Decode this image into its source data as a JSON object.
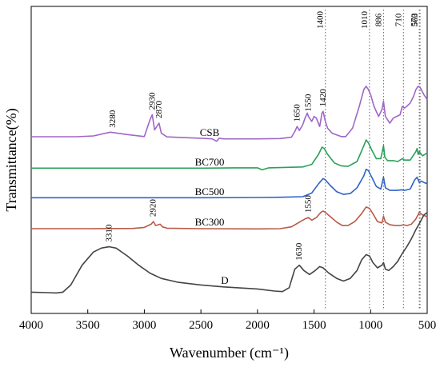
{
  "chart_data": {
    "type": "line",
    "xlabel": "Wavenumber (cm⁻¹)",
    "ylabel": "Transmittance(%)",
    "xlim": [
      4000,
      500
    ],
    "x_reversed": true,
    "x_ticks": [
      4000,
      3500,
      3000,
      2500,
      2000,
      1500,
      1000,
      500
    ],
    "y_ticks": "none",
    "grid": false,
    "legend": "none",
    "reference_lines": [
      1400,
      1010,
      886,
      710,
      570,
      563
    ],
    "reference_line_labels": [
      "1400",
      "1010",
      "886",
      "710",
      "570",
      "563"
    ],
    "series": [
      {
        "name": "CSB",
        "color": "#a066c8",
        "points": [
          [
            4000,
            0.95
          ],
          [
            3800,
            0.95
          ],
          [
            3600,
            0.95
          ],
          [
            3450,
            1.2
          ],
          [
            3300,
            2.3
          ],
          [
            3150,
            1.6
          ],
          [
            3000,
            1.0
          ],
          [
            2950,
            6.0
          ],
          [
            2930,
            7.5
          ],
          [
            2910,
            3.0
          ],
          [
            2880,
            4.5
          ],
          [
            2870,
            5.0
          ],
          [
            2850,
            2.0
          ],
          [
            2800,
            0.9
          ],
          [
            2500,
            0.5
          ],
          [
            2400,
            0.3
          ],
          [
            2360,
            -0.4
          ],
          [
            2340,
            0.5
          ],
          [
            2300,
            0.3
          ],
          [
            2000,
            0.3
          ],
          [
            1800,
            0.4
          ],
          [
            1700,
            0.8
          ],
          [
            1670,
            2.5
          ],
          [
            1650,
            4.0
          ],
          [
            1630,
            2.8
          ],
          [
            1600,
            4.5
          ],
          [
            1580,
            6.5
          ],
          [
            1560,
            8.0
          ],
          [
            1550,
            7.0
          ],
          [
            1520,
            5.5
          ],
          [
            1500,
            7.0
          ],
          [
            1480,
            6.5
          ],
          [
            1450,
            4.0
          ],
          [
            1430,
            8.0
          ],
          [
            1420,
            8.5
          ],
          [
            1400,
            5.5
          ],
          [
            1380,
            3.5
          ],
          [
            1340,
            2.0
          ],
          [
            1300,
            1.5
          ],
          [
            1260,
            1.0
          ],
          [
            1220,
            1.0
          ],
          [
            1160,
            3.5
          ],
          [
            1100,
            10.0
          ],
          [
            1060,
            15.0
          ],
          [
            1040,
            16.0
          ],
          [
            1020,
            15.0
          ],
          [
            1000,
            13.5
          ],
          [
            970,
            10.0
          ],
          [
            930,
            7.0
          ],
          [
            900,
            9.0
          ],
          [
            886,
            11.5
          ],
          [
            870,
            7.0
          ],
          [
            830,
            5.0
          ],
          [
            800,
            6.5
          ],
          [
            770,
            7.0
          ],
          [
            740,
            7.5
          ],
          [
            720,
            10.0
          ],
          [
            700,
            9.5
          ],
          [
            680,
            10.0
          ],
          [
            650,
            11.0
          ],
          [
            620,
            13.0
          ],
          [
            600,
            15.0
          ],
          [
            580,
            16.0
          ],
          [
            560,
            15.5
          ],
          [
            530,
            13.5
          ],
          [
            500,
            12.0
          ]
        ]
      },
      {
        "name": "BC700",
        "color": "#2aa05a",
        "points": [
          [
            4000,
            0.2
          ],
          [
            3500,
            0.2
          ],
          [
            3000,
            0.2
          ],
          [
            2500,
            0.2
          ],
          [
            2200,
            0.3
          ],
          [
            2000,
            0.3
          ],
          [
            1960,
            -0.4
          ],
          [
            1900,
            0.3
          ],
          [
            1800,
            0.4
          ],
          [
            1600,
            0.6
          ],
          [
            1520,
            1.5
          ],
          [
            1460,
            5.0
          ],
          [
            1430,
            7.5
          ],
          [
            1410,
            7.0
          ],
          [
            1380,
            5.0
          ],
          [
            1320,
            2.0
          ],
          [
            1260,
            1.0
          ],
          [
            1200,
            0.8
          ],
          [
            1120,
            2.5
          ],
          [
            1060,
            8.0
          ],
          [
            1040,
            10.0
          ],
          [
            1020,
            9.0
          ],
          [
            990,
            6.5
          ],
          [
            950,
            3.5
          ],
          [
            910,
            3.5
          ],
          [
            886,
            8.0
          ],
          [
            875,
            4.0
          ],
          [
            850,
            2.8
          ],
          [
            800,
            2.8
          ],
          [
            760,
            2.5
          ],
          [
            720,
            3.5
          ],
          [
            700,
            3.0
          ],
          [
            650,
            3.0
          ],
          [
            600,
            6.0
          ],
          [
            590,
            7.0
          ],
          [
            580,
            5.0
          ],
          [
            570,
            6.0
          ],
          [
            563,
            5.5
          ],
          [
            540,
            4.5
          ],
          [
            520,
            5.0
          ],
          [
            500,
            5.5
          ]
        ]
      },
      {
        "name": "BC500",
        "color": "#2f62c8",
        "points": [
          [
            4000,
            0.2
          ],
          [
            3500,
            0.2
          ],
          [
            3000,
            0.2
          ],
          [
            2500,
            0.2
          ],
          [
            2000,
            0.3
          ],
          [
            1800,
            0.4
          ],
          [
            1600,
            0.6
          ],
          [
            1520,
            2.0
          ],
          [
            1460,
            5.5
          ],
          [
            1420,
            7.5
          ],
          [
            1400,
            7.0
          ],
          [
            1360,
            5.0
          ],
          [
            1300,
            2.5
          ],
          [
            1240,
            1.5
          ],
          [
            1180,
            1.8
          ],
          [
            1120,
            4.0
          ],
          [
            1060,
            8.5
          ],
          [
            1040,
            11.0
          ],
          [
            1020,
            10.5
          ],
          [
            990,
            8.0
          ],
          [
            950,
            4.5
          ],
          [
            910,
            3.5
          ],
          [
            886,
            8.0
          ],
          [
            870,
            4.0
          ],
          [
            830,
            3.0
          ],
          [
            800,
            3.0
          ],
          [
            760,
            3.0
          ],
          [
            730,
            3.2
          ],
          [
            700,
            3.0
          ],
          [
            650,
            3.5
          ],
          [
            610,
            7.0
          ],
          [
            590,
            8.0
          ],
          [
            570,
            6.0
          ],
          [
            550,
            6.5
          ],
          [
            530,
            6.0
          ],
          [
            500,
            5.5
          ]
        ]
      },
      {
        "name": "BC300",
        "color": "#b85a48",
        "points": [
          [
            4000,
            0.3
          ],
          [
            3500,
            0.3
          ],
          [
            3100,
            0.4
          ],
          [
            3000,
            0.8
          ],
          [
            2940,
            2.0
          ],
          [
            2920,
            3.0
          ],
          [
            2900,
            1.5
          ],
          [
            2860,
            2.0
          ],
          [
            2840,
            1.0
          ],
          [
            2800,
            0.5
          ],
          [
            2500,
            0.3
          ],
          [
            2000,
            0.2
          ],
          [
            1800,
            0.3
          ],
          [
            1700,
            1.0
          ],
          [
            1620,
            3.0
          ],
          [
            1580,
            4.0
          ],
          [
            1550,
            4.5
          ],
          [
            1520,
            3.5
          ],
          [
            1480,
            4.5
          ],
          [
            1440,
            6.5
          ],
          [
            1420,
            7.0
          ],
          [
            1400,
            6.5
          ],
          [
            1360,
            5.0
          ],
          [
            1300,
            2.8
          ],
          [
            1250,
            1.5
          ],
          [
            1200,
            1.5
          ],
          [
            1140,
            3.0
          ],
          [
            1080,
            6.0
          ],
          [
            1040,
            8.5
          ],
          [
            1010,
            8.0
          ],
          [
            980,
            6.0
          ],
          [
            940,
            3.0
          ],
          [
            900,
            2.5
          ],
          [
            886,
            5.0
          ],
          [
            870,
            2.8
          ],
          [
            830,
            1.8
          ],
          [
            780,
            1.5
          ],
          [
            740,
            1.5
          ],
          [
            710,
            1.8
          ],
          [
            680,
            1.5
          ],
          [
            640,
            2.0
          ],
          [
            600,
            4.0
          ],
          [
            570,
            6.5
          ],
          [
            540,
            5.5
          ],
          [
            510,
            5.0
          ],
          [
            500,
            4.8
          ]
        ]
      },
      {
        "name": "D",
        "color": "#444444",
        "points": [
          [
            4000,
            0.8
          ],
          [
            3850,
            0.6
          ],
          [
            3780,
            0.5
          ],
          [
            3720,
            0.8
          ],
          [
            3650,
            3.5
          ],
          [
            3550,
            11.0
          ],
          [
            3450,
            16.0
          ],
          [
            3380,
            17.5
          ],
          [
            3310,
            18.0
          ],
          [
            3250,
            17.5
          ],
          [
            3150,
            14.5
          ],
          [
            3050,
            11.0
          ],
          [
            2950,
            8.0
          ],
          [
            2850,
            6.0
          ],
          [
            2700,
            4.5
          ],
          [
            2500,
            3.5
          ],
          [
            2300,
            2.8
          ],
          [
            2000,
            2.0
          ],
          [
            1850,
            1.2
          ],
          [
            1780,
            1.0
          ],
          [
            1720,
            2.5
          ],
          [
            1670,
            9.5
          ],
          [
            1630,
            11.0
          ],
          [
            1590,
            9.0
          ],
          [
            1540,
            7.5
          ],
          [
            1490,
            9.0
          ],
          [
            1450,
            10.5
          ],
          [
            1420,
            10.0
          ],
          [
            1370,
            8.0
          ],
          [
            1300,
            6.0
          ],
          [
            1240,
            5.0
          ],
          [
            1180,
            6.0
          ],
          [
            1120,
            9.0
          ],
          [
            1080,
            13.0
          ],
          [
            1040,
            15.0
          ],
          [
            1010,
            14.5
          ],
          [
            980,
            12.0
          ],
          [
            940,
            10.0
          ],
          [
            900,
            11.0
          ],
          [
            886,
            12.0
          ],
          [
            870,
            9.5
          ],
          [
            840,
            9.0
          ],
          [
            800,
            10.5
          ],
          [
            760,
            12.5
          ],
          [
            720,
            15.5
          ],
          [
            680,
            18.0
          ],
          [
            640,
            21.0
          ],
          [
            600,
            24.5
          ],
          [
            560,
            27.5
          ],
          [
            530,
            30.0
          ],
          [
            500,
            31.0
          ]
        ]
      }
    ],
    "peak_labels": [
      {
        "series": "CSB",
        "text": "3280",
        "x": 3280
      },
      {
        "series": "CSB",
        "text": "2930",
        "x": 2930
      },
      {
        "series": "CSB",
        "text": "2870",
        "x": 2870
      },
      {
        "series": "CSB",
        "text": "1650",
        "x": 1650
      },
      {
        "series": "CSB",
        "text": "1550",
        "x": 1550
      },
      {
        "series": "CSB",
        "text": "1420",
        "x": 1420
      },
      {
        "series": "BC300",
        "text": "2920",
        "x": 2920
      },
      {
        "series": "BC300",
        "text": "1550",
        "x": 1550
      },
      {
        "series": "D",
        "text": "3310",
        "x": 3310
      },
      {
        "series": "D",
        "text": "1630",
        "x": 1630
      }
    ]
  }
}
